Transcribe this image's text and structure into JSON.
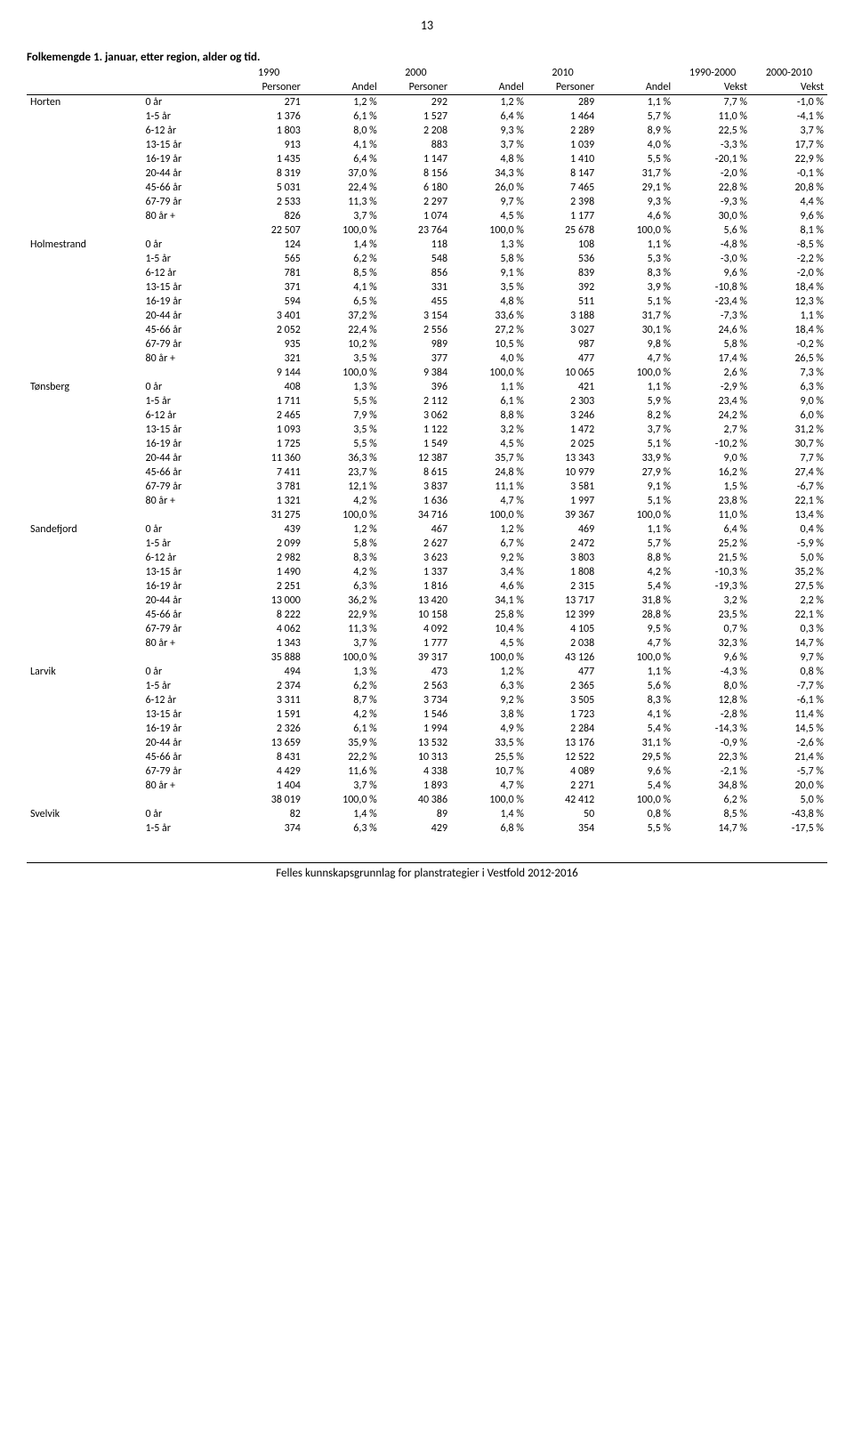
{
  "page_number": "13",
  "title": "Folkemengde 1. januar, etter region, alder og tid.",
  "footer": "Felles kunnskapsgrunnlag for planstrategier i Vestfold 2012-2016",
  "header_row1": [
    "",
    "",
    "1990",
    "",
    "2000",
    "",
    "2010",
    "",
    "1990-2000",
    "2000-2010"
  ],
  "header_row2": [
    "",
    "",
    "Personer",
    "Andel",
    "Personer",
    "Andel",
    "Personer",
    "Andel",
    "Vekst",
    "Vekst"
  ],
  "regions": [
    {
      "name": "Horten",
      "rows": [
        [
          "0 år",
          "271",
          "1,2 %",
          "292",
          "1,2 %",
          "289",
          "1,1 %",
          "7,7 %",
          "-1,0 %"
        ],
        [
          "1-5 år",
          "1 376",
          "6,1 %",
          "1 527",
          "6,4 %",
          "1 464",
          "5,7 %",
          "11,0 %",
          "-4,1 %"
        ],
        [
          "6-12 år",
          "1 803",
          "8,0 %",
          "2 208",
          "9,3 %",
          "2 289",
          "8,9 %",
          "22,5 %",
          "3,7 %"
        ],
        [
          "13-15 år",
          "913",
          "4,1 %",
          "883",
          "3,7 %",
          "1 039",
          "4,0 %",
          "-3,3 %",
          "17,7 %"
        ],
        [
          "16-19 år",
          "1 435",
          "6,4 %",
          "1 147",
          "4,8 %",
          "1 410",
          "5,5 %",
          "-20,1 %",
          "22,9 %"
        ],
        [
          "20-44 år",
          "8 319",
          "37,0 %",
          "8 156",
          "34,3 %",
          "8 147",
          "31,7 %",
          "-2,0 %",
          "-0,1 %"
        ],
        [
          "45-66 år",
          "5 031",
          "22,4 %",
          "6 180",
          "26,0 %",
          "7 465",
          "29,1 %",
          "22,8 %",
          "20,8 %"
        ],
        [
          "67-79 år",
          "2 533",
          "11,3 %",
          "2 297",
          "9,7 %",
          "2 398",
          "9,3 %",
          "-9,3 %",
          "4,4 %"
        ],
        [
          "80 år +",
          "826",
          "3,7 %",
          "1 074",
          "4,5 %",
          "1 177",
          "4,6 %",
          "30,0 %",
          "9,6 %"
        ],
        [
          "",
          "22 507",
          "100,0 %",
          "23 764",
          "100,0 %",
          "25 678",
          "100,0 %",
          "5,6 %",
          "8,1 %"
        ]
      ]
    },
    {
      "name": "Holmestrand",
      "rows": [
        [
          "0 år",
          "124",
          "1,4 %",
          "118",
          "1,3 %",
          "108",
          "1,1 %",
          "-4,8 %",
          "-8,5 %"
        ],
        [
          "1-5 år",
          "565",
          "6,2 %",
          "548",
          "5,8 %",
          "536",
          "5,3 %",
          "-3,0 %",
          "-2,2 %"
        ],
        [
          "6-12 år",
          "781",
          "8,5 %",
          "856",
          "9,1 %",
          "839",
          "8,3 %",
          "9,6 %",
          "-2,0 %"
        ],
        [
          "13-15 år",
          "371",
          "4,1 %",
          "331",
          "3,5 %",
          "392",
          "3,9 %",
          "-10,8 %",
          "18,4 %"
        ],
        [
          "16-19 år",
          "594",
          "6,5 %",
          "455",
          "4,8 %",
          "511",
          "5,1 %",
          "-23,4 %",
          "12,3 %"
        ],
        [
          "20-44 år",
          "3 401",
          "37,2 %",
          "3 154",
          "33,6 %",
          "3 188",
          "31,7 %",
          "-7,3 %",
          "1,1 %"
        ],
        [
          "45-66 år",
          "2 052",
          "22,4 %",
          "2 556",
          "27,2 %",
          "3 027",
          "30,1 %",
          "24,6 %",
          "18,4 %"
        ],
        [
          "67-79 år",
          "935",
          "10,2 %",
          "989",
          "10,5 %",
          "987",
          "9,8 %",
          "5,8 %",
          "-0,2 %"
        ],
        [
          "80 år +",
          "321",
          "3,5 %",
          "377",
          "4,0 %",
          "477",
          "4,7 %",
          "17,4 %",
          "26,5 %"
        ],
        [
          "",
          "9 144",
          "100,0 %",
          "9 384",
          "100,0 %",
          "10 065",
          "100,0 %",
          "2,6 %",
          "7,3 %"
        ]
      ]
    },
    {
      "name": "Tønsberg",
      "rows": [
        [
          "0 år",
          "408",
          "1,3 %",
          "396",
          "1,1 %",
          "421",
          "1,1 %",
          "-2,9 %",
          "6,3 %"
        ],
        [
          "1-5 år",
          "1 711",
          "5,5 %",
          "2 112",
          "6,1 %",
          "2 303",
          "5,9 %",
          "23,4 %",
          "9,0 %"
        ],
        [
          "6-12 år",
          "2 465",
          "7,9 %",
          "3 062",
          "8,8 %",
          "3 246",
          "8,2 %",
          "24,2 %",
          "6,0 %"
        ],
        [
          "13-15 år",
          "1 093",
          "3,5 %",
          "1 122",
          "3,2 %",
          "1 472",
          "3,7 %",
          "2,7 %",
          "31,2 %"
        ],
        [
          "16-19 år",
          "1 725",
          "5,5 %",
          "1 549",
          "4,5 %",
          "2 025",
          "5,1 %",
          "-10,2 %",
          "30,7 %"
        ],
        [
          "20-44 år",
          "11 360",
          "36,3 %",
          "12 387",
          "35,7 %",
          "13 343",
          "33,9 %",
          "9,0 %",
          "7,7 %"
        ],
        [
          "45-66 år",
          "7 411",
          "23,7 %",
          "8 615",
          "24,8 %",
          "10 979",
          "27,9 %",
          "16,2 %",
          "27,4 %"
        ],
        [
          "67-79 år",
          "3 781",
          "12,1 %",
          "3 837",
          "11,1 %",
          "3 581",
          "9,1 %",
          "1,5 %",
          "-6,7 %"
        ],
        [
          "80 år +",
          "1 321",
          "4,2 %",
          "1 636",
          "4,7 %",
          "1 997",
          "5,1 %",
          "23,8 %",
          "22,1 %"
        ],
        [
          "",
          "31 275",
          "100,0 %",
          "34 716",
          "100,0 %",
          "39 367",
          "100,0 %",
          "11,0 %",
          "13,4 %"
        ]
      ]
    },
    {
      "name": "Sandefjord",
      "rows": [
        [
          "0 år",
          "439",
          "1,2 %",
          "467",
          "1,2 %",
          "469",
          "1,1 %",
          "6,4 %",
          "0,4 %"
        ],
        [
          "1-5 år",
          "2 099",
          "5,8 %",
          "2 627",
          "6,7 %",
          "2 472",
          "5,7 %",
          "25,2 %",
          "-5,9 %"
        ],
        [
          "6-12 år",
          "2 982",
          "8,3 %",
          "3 623",
          "9,2 %",
          "3 803",
          "8,8 %",
          "21,5 %",
          "5,0 %"
        ],
        [
          "13-15 år",
          "1 490",
          "4,2 %",
          "1 337",
          "3,4 %",
          "1 808",
          "4,2 %",
          "-10,3 %",
          "35,2 %"
        ],
        [
          "16-19 år",
          "2 251",
          "6,3 %",
          "1 816",
          "4,6 %",
          "2 315",
          "5,4 %",
          "-19,3 %",
          "27,5 %"
        ],
        [
          "20-44 år",
          "13 000",
          "36,2 %",
          "13 420",
          "34,1 %",
          "13 717",
          "31,8 %",
          "3,2 %",
          "2,2 %"
        ],
        [
          "45-66 år",
          "8 222",
          "22,9 %",
          "10 158",
          "25,8 %",
          "12 399",
          "28,8 %",
          "23,5 %",
          "22,1 %"
        ],
        [
          "67-79 år",
          "4 062",
          "11,3 %",
          "4 092",
          "10,4 %",
          "4 105",
          "9,5 %",
          "0,7 %",
          "0,3 %"
        ],
        [
          "80 år +",
          "1 343",
          "3,7 %",
          "1 777",
          "4,5 %",
          "2 038",
          "4,7 %",
          "32,3 %",
          "14,7 %"
        ],
        [
          "",
          "35 888",
          "100,0 %",
          "39 317",
          "100,0 %",
          "43 126",
          "100,0 %",
          "9,6 %",
          "9,7 %"
        ]
      ]
    },
    {
      "name": "Larvik",
      "rows": [
        [
          "0 år",
          "494",
          "1,3 %",
          "473",
          "1,2 %",
          "477",
          "1,1 %",
          "-4,3 %",
          "0,8 %"
        ],
        [
          "1-5 år",
          "2 374",
          "6,2 %",
          "2 563",
          "6,3 %",
          "2 365",
          "5,6 %",
          "8,0 %",
          "-7,7 %"
        ],
        [
          "6-12 år",
          "3 311",
          "8,7 %",
          "3 734",
          "9,2 %",
          "3 505",
          "8,3 %",
          "12,8 %",
          "-6,1 %"
        ],
        [
          "13-15 år",
          "1 591",
          "4,2 %",
          "1 546",
          "3,8 %",
          "1 723",
          "4,1 %",
          "-2,8 %",
          "11,4 %"
        ],
        [
          "16-19 år",
          "2 326",
          "6,1 %",
          "1 994",
          "4,9 %",
          "2 284",
          "5,4 %",
          "-14,3 %",
          "14,5 %"
        ],
        [
          "20-44 år",
          "13 659",
          "35,9 %",
          "13 532",
          "33,5 %",
          "13 176",
          "31,1 %",
          "-0,9 %",
          "-2,6 %"
        ],
        [
          "45-66 år",
          "8 431",
          "22,2 %",
          "10 313",
          "25,5 %",
          "12 522",
          "29,5 %",
          "22,3 %",
          "21,4 %"
        ],
        [
          "67-79 år",
          "4 429",
          "11,6 %",
          "4 338",
          "10,7 %",
          "4 089",
          "9,6 %",
          "-2,1 %",
          "-5,7 %"
        ],
        [
          "80 år +",
          "1 404",
          "3,7 %",
          "1 893",
          "4,7 %",
          "2 271",
          "5,4 %",
          "34,8 %",
          "20,0 %"
        ],
        [
          "",
          "38 019",
          "100,0 %",
          "40 386",
          "100,0 %",
          "42 412",
          "100,0 %",
          "6,2 %",
          "5,0 %"
        ]
      ]
    },
    {
      "name": "Svelvik",
      "rows": [
        [
          "0 år",
          "82",
          "1,4 %",
          "89",
          "1,4 %",
          "50",
          "0,8 %",
          "8,5 %",
          "-43,8 %"
        ],
        [
          "1-5 år",
          "374",
          "6,3 %",
          "429",
          "6,8 %",
          "354",
          "5,5 %",
          "14,7 %",
          "-17,5 %"
        ]
      ]
    }
  ]
}
